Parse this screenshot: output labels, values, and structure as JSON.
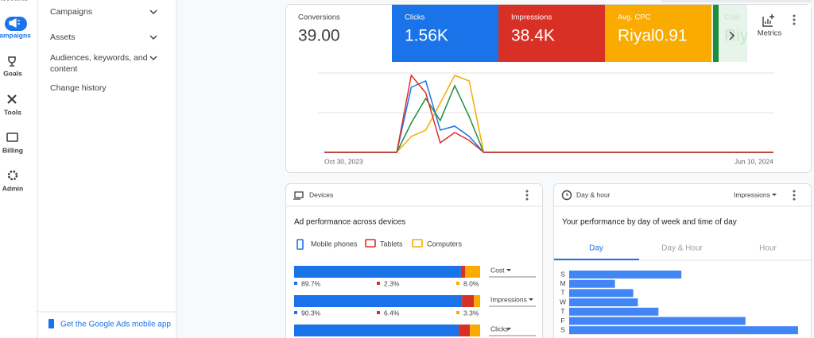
{
  "rail": {
    "items": [
      "Accounts",
      "Campaigns",
      "Goals",
      "Tools",
      "Billing",
      "Admin"
    ]
  },
  "nav": {
    "items": [
      "Campaigns",
      "Assets",
      "Audiences, keywords, and content",
      "Change history"
    ],
    "app_link": "Get the Google Ads mobile app"
  },
  "overview": {
    "metrics": [
      {
        "label": "Conversions",
        "value": "39.00",
        "color": "#ffffff"
      },
      {
        "label": "Clicks",
        "value": "1.56K",
        "color": "#1a73e8"
      },
      {
        "label": "Impressions",
        "value": "38.4K",
        "color": "#d93025"
      },
      {
        "label": "Avg. CPC",
        "value": "Riyal0.91",
        "color": "#f9ab00"
      },
      {
        "label": "Cost",
        "value": "Riy",
        "color": "#1e8e3e"
      }
    ],
    "metrics_button": "Metrics",
    "chart": {
      "type": "line",
      "ylim": [
        0,
        100
      ],
      "categories": [
        "Oct 30, 2023",
        null,
        null,
        null,
        null,
        null,
        null,
        null,
        null,
        null,
        null,
        null,
        null,
        null,
        null,
        null,
        null,
        null,
        null,
        null,
        null,
        null,
        null,
        null,
        null,
        null,
        null,
        null,
        null,
        null,
        null,
        "Jun 10, 2024"
      ],
      "series": [
        {
          "color": "#1e8e3e",
          "values": [
            0,
            0,
            0,
            0,
            0,
            0,
            37,
            68,
            40,
            84,
            45,
            0,
            0,
            0,
            0,
            0,
            0,
            0,
            0,
            0,
            0,
            0,
            0,
            0,
            0,
            0,
            0,
            0,
            0,
            0,
            0,
            0
          ]
        },
        {
          "color": "#f9ab00",
          "values": [
            0,
            0,
            0,
            0,
            0,
            0,
            20,
            28,
            62,
            97,
            90,
            0,
            0,
            0,
            0,
            0,
            0,
            0,
            0,
            0,
            0,
            0,
            0,
            0,
            0,
            0,
            0,
            0,
            0,
            0,
            0,
            0
          ]
        },
        {
          "color": "#1a73e8",
          "values": [
            0,
            0,
            0,
            0,
            0,
            0,
            82,
            90,
            28,
            33,
            20,
            0,
            0,
            0,
            0,
            0,
            0,
            0,
            0,
            0,
            0,
            0,
            0,
            0,
            0,
            0,
            0,
            0,
            0,
            0,
            0,
            0
          ]
        },
        {
          "color": "#d93025",
          "values": [
            0,
            0,
            0,
            0,
            0,
            0,
            97,
            75,
            12,
            25,
            15,
            0,
            0,
            0,
            0,
            0,
            0,
            0,
            0,
            0,
            0,
            0,
            0,
            0,
            0,
            0,
            0,
            0,
            0,
            0,
            0,
            0
          ]
        }
      ]
    }
  },
  "devices": {
    "title": "Devices",
    "subtitle": "Ad performance across devices",
    "chart": {
      "type": "stacked-bar",
      "xlim": [
        0,
        100
      ],
      "series": [
        {
          "name": "Mobile phones",
          "color": "#1a73e8"
        },
        {
          "name": "Tablets",
          "color": "#d93025"
        },
        {
          "name": "Computers",
          "color": "#f9ab00"
        }
      ],
      "rows": [
        {
          "metric": "Cost",
          "values": [
            89.7,
            2.3,
            8.0
          ],
          "value_labels": [
            "89.7%",
            "2.3%",
            "8.0%"
          ]
        },
        {
          "metric": "Impressions",
          "values": [
            90.3,
            6.4,
            3.3
          ],
          "value_labels": [
            "90.3%",
            "6.4%",
            "3.3%"
          ]
        },
        {
          "metric": "Clicks",
          "values": [
            88.5,
            6,
            5.5
          ]
        }
      ]
    }
  },
  "day_hour": {
    "title": "Day & hour",
    "metric": "Impressions",
    "subtitle": "Your performance by day of week and time of day",
    "tabs": [
      "Day",
      "Day & Hour",
      "Hour"
    ],
    "chart": {
      "type": "hbar",
      "xlim": [
        0,
        100
      ],
      "color": "#4285f4",
      "categories": [
        "S",
        "M",
        "T",
        "W",
        "T",
        "F",
        "S"
      ],
      "values": [
        49,
        20,
        28,
        30,
        39,
        77,
        100
      ]
    }
  }
}
